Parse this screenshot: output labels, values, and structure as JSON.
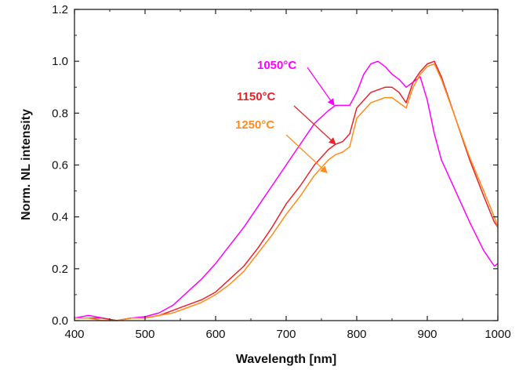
{
  "chart_data": {
    "type": "line",
    "xlabel": "Wavelength [nm]",
    "ylabel": "Norm. NL intensity",
    "xlim": [
      400,
      1000
    ],
    "ylim": [
      0.0,
      1.2
    ],
    "xticks": [
      400,
      500,
      600,
      700,
      800,
      900,
      1000
    ],
    "yticks": [
      "0.0",
      "0.2",
      "0.4",
      "0.6",
      "0.8",
      "1.0",
      "1.2"
    ],
    "grid": false,
    "series": [
      {
        "name": "1050°C",
        "color": "#ff00ff",
        "x": [
          400,
          420,
          440,
          460,
          480,
          500,
          520,
          540,
          560,
          580,
          600,
          620,
          640,
          660,
          680,
          700,
          720,
          740,
          760,
          770,
          780,
          790,
          800,
          810,
          820,
          830,
          840,
          850,
          860,
          870,
          880,
          890,
          900,
          910,
          920,
          940,
          960,
          980,
          995,
          1000
        ],
        "y": [
          0.01,
          0.02,
          0.01,
          0.0,
          0.01,
          0.015,
          0.03,
          0.06,
          0.11,
          0.16,
          0.22,
          0.29,
          0.36,
          0.44,
          0.52,
          0.6,
          0.68,
          0.76,
          0.81,
          0.83,
          0.83,
          0.83,
          0.88,
          0.95,
          0.99,
          1.0,
          0.98,
          0.95,
          0.93,
          0.9,
          0.92,
          0.94,
          0.85,
          0.72,
          0.62,
          0.5,
          0.38,
          0.27,
          0.21,
          0.22
        ]
      },
      {
        "name": "1150°C",
        "color": "#e8232a",
        "x": [
          400,
          420,
          440,
          460,
          480,
          500,
          520,
          540,
          560,
          580,
          600,
          620,
          640,
          660,
          680,
          700,
          720,
          740,
          760,
          770,
          780,
          790,
          800,
          820,
          840,
          850,
          860,
          870,
          880,
          890,
          900,
          910,
          920,
          940,
          960,
          980,
          995,
          1000
        ],
        "y": [
          0.01,
          0.01,
          0.01,
          0.0,
          0.01,
          0.01,
          0.02,
          0.04,
          0.06,
          0.08,
          0.11,
          0.16,
          0.21,
          0.28,
          0.36,
          0.45,
          0.52,
          0.6,
          0.66,
          0.68,
          0.69,
          0.72,
          0.82,
          0.88,
          0.9,
          0.9,
          0.88,
          0.84,
          0.92,
          0.96,
          0.99,
          1.0,
          0.94,
          0.78,
          0.62,
          0.48,
          0.38,
          0.36
        ]
      },
      {
        "name": "1250°C",
        "color": "#ff8c1a",
        "x": [
          400,
          420,
          440,
          460,
          480,
          500,
          520,
          540,
          560,
          580,
          600,
          620,
          640,
          660,
          680,
          700,
          720,
          740,
          760,
          770,
          780,
          790,
          800,
          820,
          840,
          850,
          860,
          870,
          880,
          890,
          900,
          910,
          920,
          940,
          960,
          980,
          995,
          1000
        ],
        "y": [
          0.01,
          0.01,
          0.0,
          0.0,
          0.01,
          0.01,
          0.02,
          0.03,
          0.05,
          0.07,
          0.1,
          0.14,
          0.19,
          0.26,
          0.33,
          0.41,
          0.48,
          0.56,
          0.62,
          0.64,
          0.65,
          0.67,
          0.78,
          0.84,
          0.86,
          0.86,
          0.84,
          0.82,
          0.9,
          0.95,
          0.98,
          0.99,
          0.93,
          0.78,
          0.63,
          0.5,
          0.4,
          0.36
        ]
      }
    ]
  }
}
